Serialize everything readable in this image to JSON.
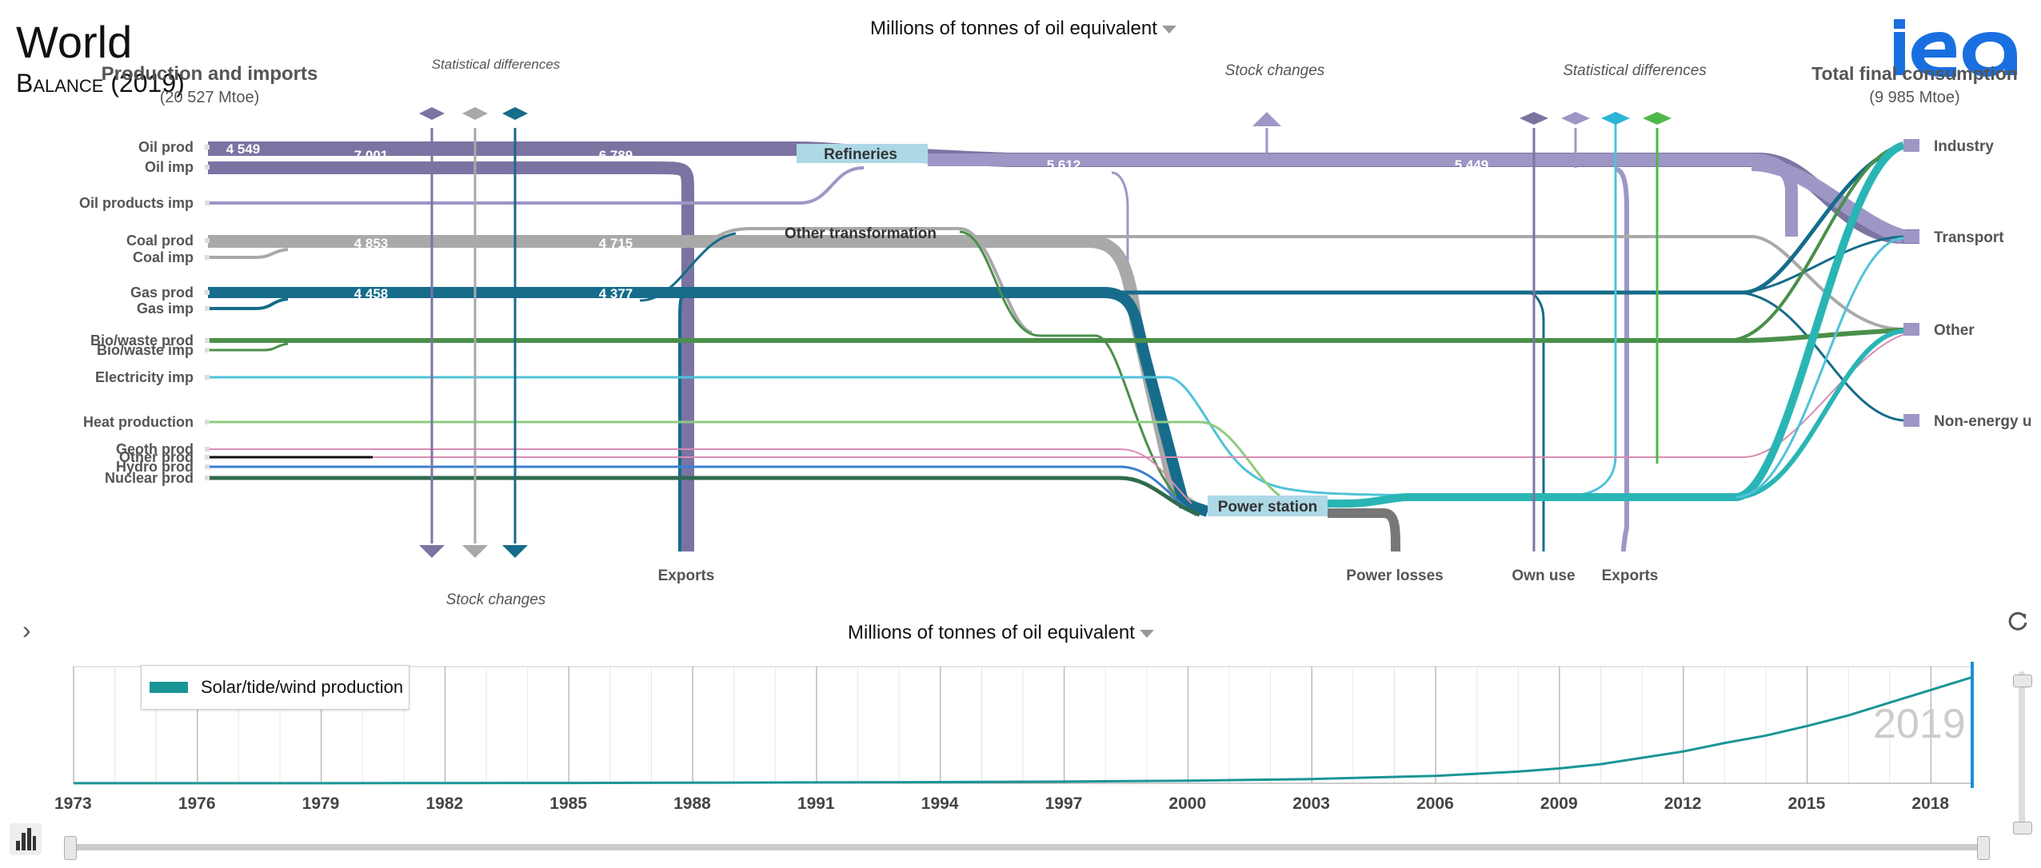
{
  "header": {
    "title": "World",
    "subtitle": "Balance (2019)",
    "unit_top": "Millions of tonnes of oil equivalent",
    "unit_bottom": "Millions of tonnes of oil equivalent",
    "logo_text": "iea"
  },
  "sankey": {
    "left_heading": "Production and imports",
    "left_total": "(20 527 Mtoe)",
    "right_heading": "Total final consumption",
    "right_total": "(9 985 Mtoe)",
    "sources": [
      "Oil prod",
      "Oil imp",
      "Oil products imp",
      "Coal prod",
      "Coal imp",
      "Gas prod",
      "Gas imp",
      "Bio/waste prod",
      "Bio/waste imp",
      "Electricity imp",
      "Heat production",
      "Geoth prod",
      "Other prod",
      "Hydro prod",
      "Nuclear prod"
    ],
    "sinks": [
      "Industry",
      "Transport",
      "Other",
      "Non-energy u"
    ],
    "nodes": {
      "refineries": "Refineries",
      "other_transformation": "Other transformation",
      "power_station": "Power station"
    },
    "annotations": {
      "stat_diff_left": "Statistical differences",
      "stock_changes_left": "Stock changes",
      "stock_changes_right": "Stock  changes",
      "stat_diff_right": "Statistical differences",
      "exports_left": "Exports",
      "power_losses": "Power losses",
      "own_use": "Own use",
      "exports_right": "Exports"
    },
    "flow_values": {
      "oil_prod": "4 549",
      "oil_total": "7 001",
      "oil_after_exports": "6 789",
      "oil_products": "5 612",
      "oil_products_after": "5 449",
      "coal_total": "4 853",
      "coal_after": "4 715",
      "gas_total": "4 458",
      "gas_after": "4 377"
    },
    "colors": {
      "oil": "#7b74a3",
      "oil_products": "#9d97c6",
      "coal": "#a9a9a9",
      "gas": "#166c8a",
      "biowaste": "#4a8f4a",
      "electricity": "#4fc3d9",
      "heat": "#8ecb7f",
      "geoth": "#d98cb3",
      "other_prod": "#111111",
      "hydro": "#3a7fd0",
      "nuclear": "#2f6b4f",
      "power_out": "#2ab5b5"
    }
  },
  "timeline": {
    "legend_label": "Solar/tide/wind production",
    "selected_year": "2019",
    "years": [
      "1973",
      "1976",
      "1979",
      "1982",
      "1985",
      "1988",
      "1991",
      "1994",
      "1997",
      "2000",
      "2003",
      "2006",
      "2009",
      "2012",
      "2015",
      "2018"
    ],
    "line_color": "#1a9596"
  },
  "chart_data": {
    "type": "line",
    "title": "",
    "xlabel": "",
    "ylabel": "",
    "x": [
      1973,
      1976,
      1979,
      1982,
      1985,
      1988,
      1991,
      1994,
      1997,
      2000,
      2003,
      2006,
      2008,
      2009,
      2010,
      2011,
      2012,
      2013,
      2014,
      2015,
      2016,
      2017,
      2018,
      2019
    ],
    "series": [
      {
        "name": "Solar/tide/wind production",
        "values": [
          0.1,
          0.1,
          0.1,
          0.2,
          0.3,
          0.5,
          0.8,
          1.1,
          1.6,
          2.5,
          4.0,
          7.0,
          11,
          14,
          18,
          24,
          30,
          38,
          45,
          54,
          64,
          76,
          88,
          100
        ]
      }
    ],
    "ylim": [
      0,
      110
    ],
    "grid": true,
    "legend": "top-left"
  }
}
